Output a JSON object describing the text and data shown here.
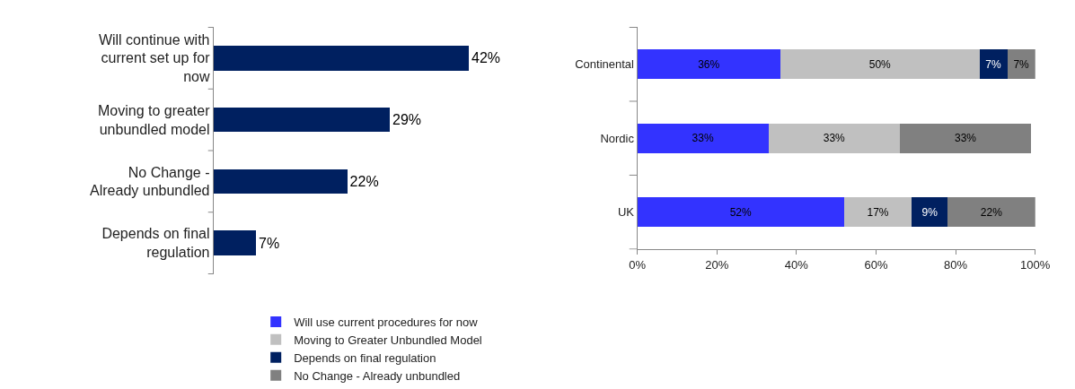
{
  "chart_data": [
    {
      "type": "bar",
      "orientation": "horizontal",
      "categories": [
        "Will continue with current set up for now",
        "Moving to greater unbundled model",
        "No Change - Already unbundled",
        "Depends on final regulation"
      ],
      "values": [
        42,
        29,
        22,
        7
      ],
      "value_labels": [
        "42%",
        "29%",
        "22%",
        "7%"
      ],
      "color": "#002060",
      "tick_labels": "y",
      "legend": false
    },
    {
      "type": "bar",
      "orientation": "horizontal",
      "stacked": true,
      "categories": [
        "Continental",
        "Nordic",
        "UK"
      ],
      "xlim": [
        0,
        100
      ],
      "xticks": [
        {
          "value": 0,
          "label": "0%"
        },
        {
          "value": 20,
          "label": "20%"
        },
        {
          "value": 40,
          "label": "40%"
        },
        {
          "value": 60,
          "label": "60%"
        },
        {
          "value": 80,
          "label": "80%"
        },
        {
          "value": 100,
          "label": "100%"
        }
      ],
      "legend": "bottom",
      "series": [
        {
          "name": "Will use current procedures for now",
          "color": "#3333ff",
          "values": [
            36,
            33,
            52
          ],
          "value_labels": [
            "36%",
            "33%",
            "52%"
          ]
        },
        {
          "name": "Moving to Greater Unbundled Model",
          "color": "#c0c0c0",
          "values": [
            50,
            33,
            17
          ],
          "value_labels": [
            "50%",
            "33%",
            "17%"
          ]
        },
        {
          "name": "Depends on final regulation",
          "color": "#002060",
          "values": [
            7,
            null,
            9
          ],
          "value_labels": [
            "7%",
            null,
            "9%"
          ]
        },
        {
          "name": "No Change - Already unbundled",
          "color": "#808080",
          "values": [
            7,
            33,
            22
          ],
          "value_labels": [
            "7%",
            "33%",
            "22%"
          ]
        }
      ]
    }
  ]
}
